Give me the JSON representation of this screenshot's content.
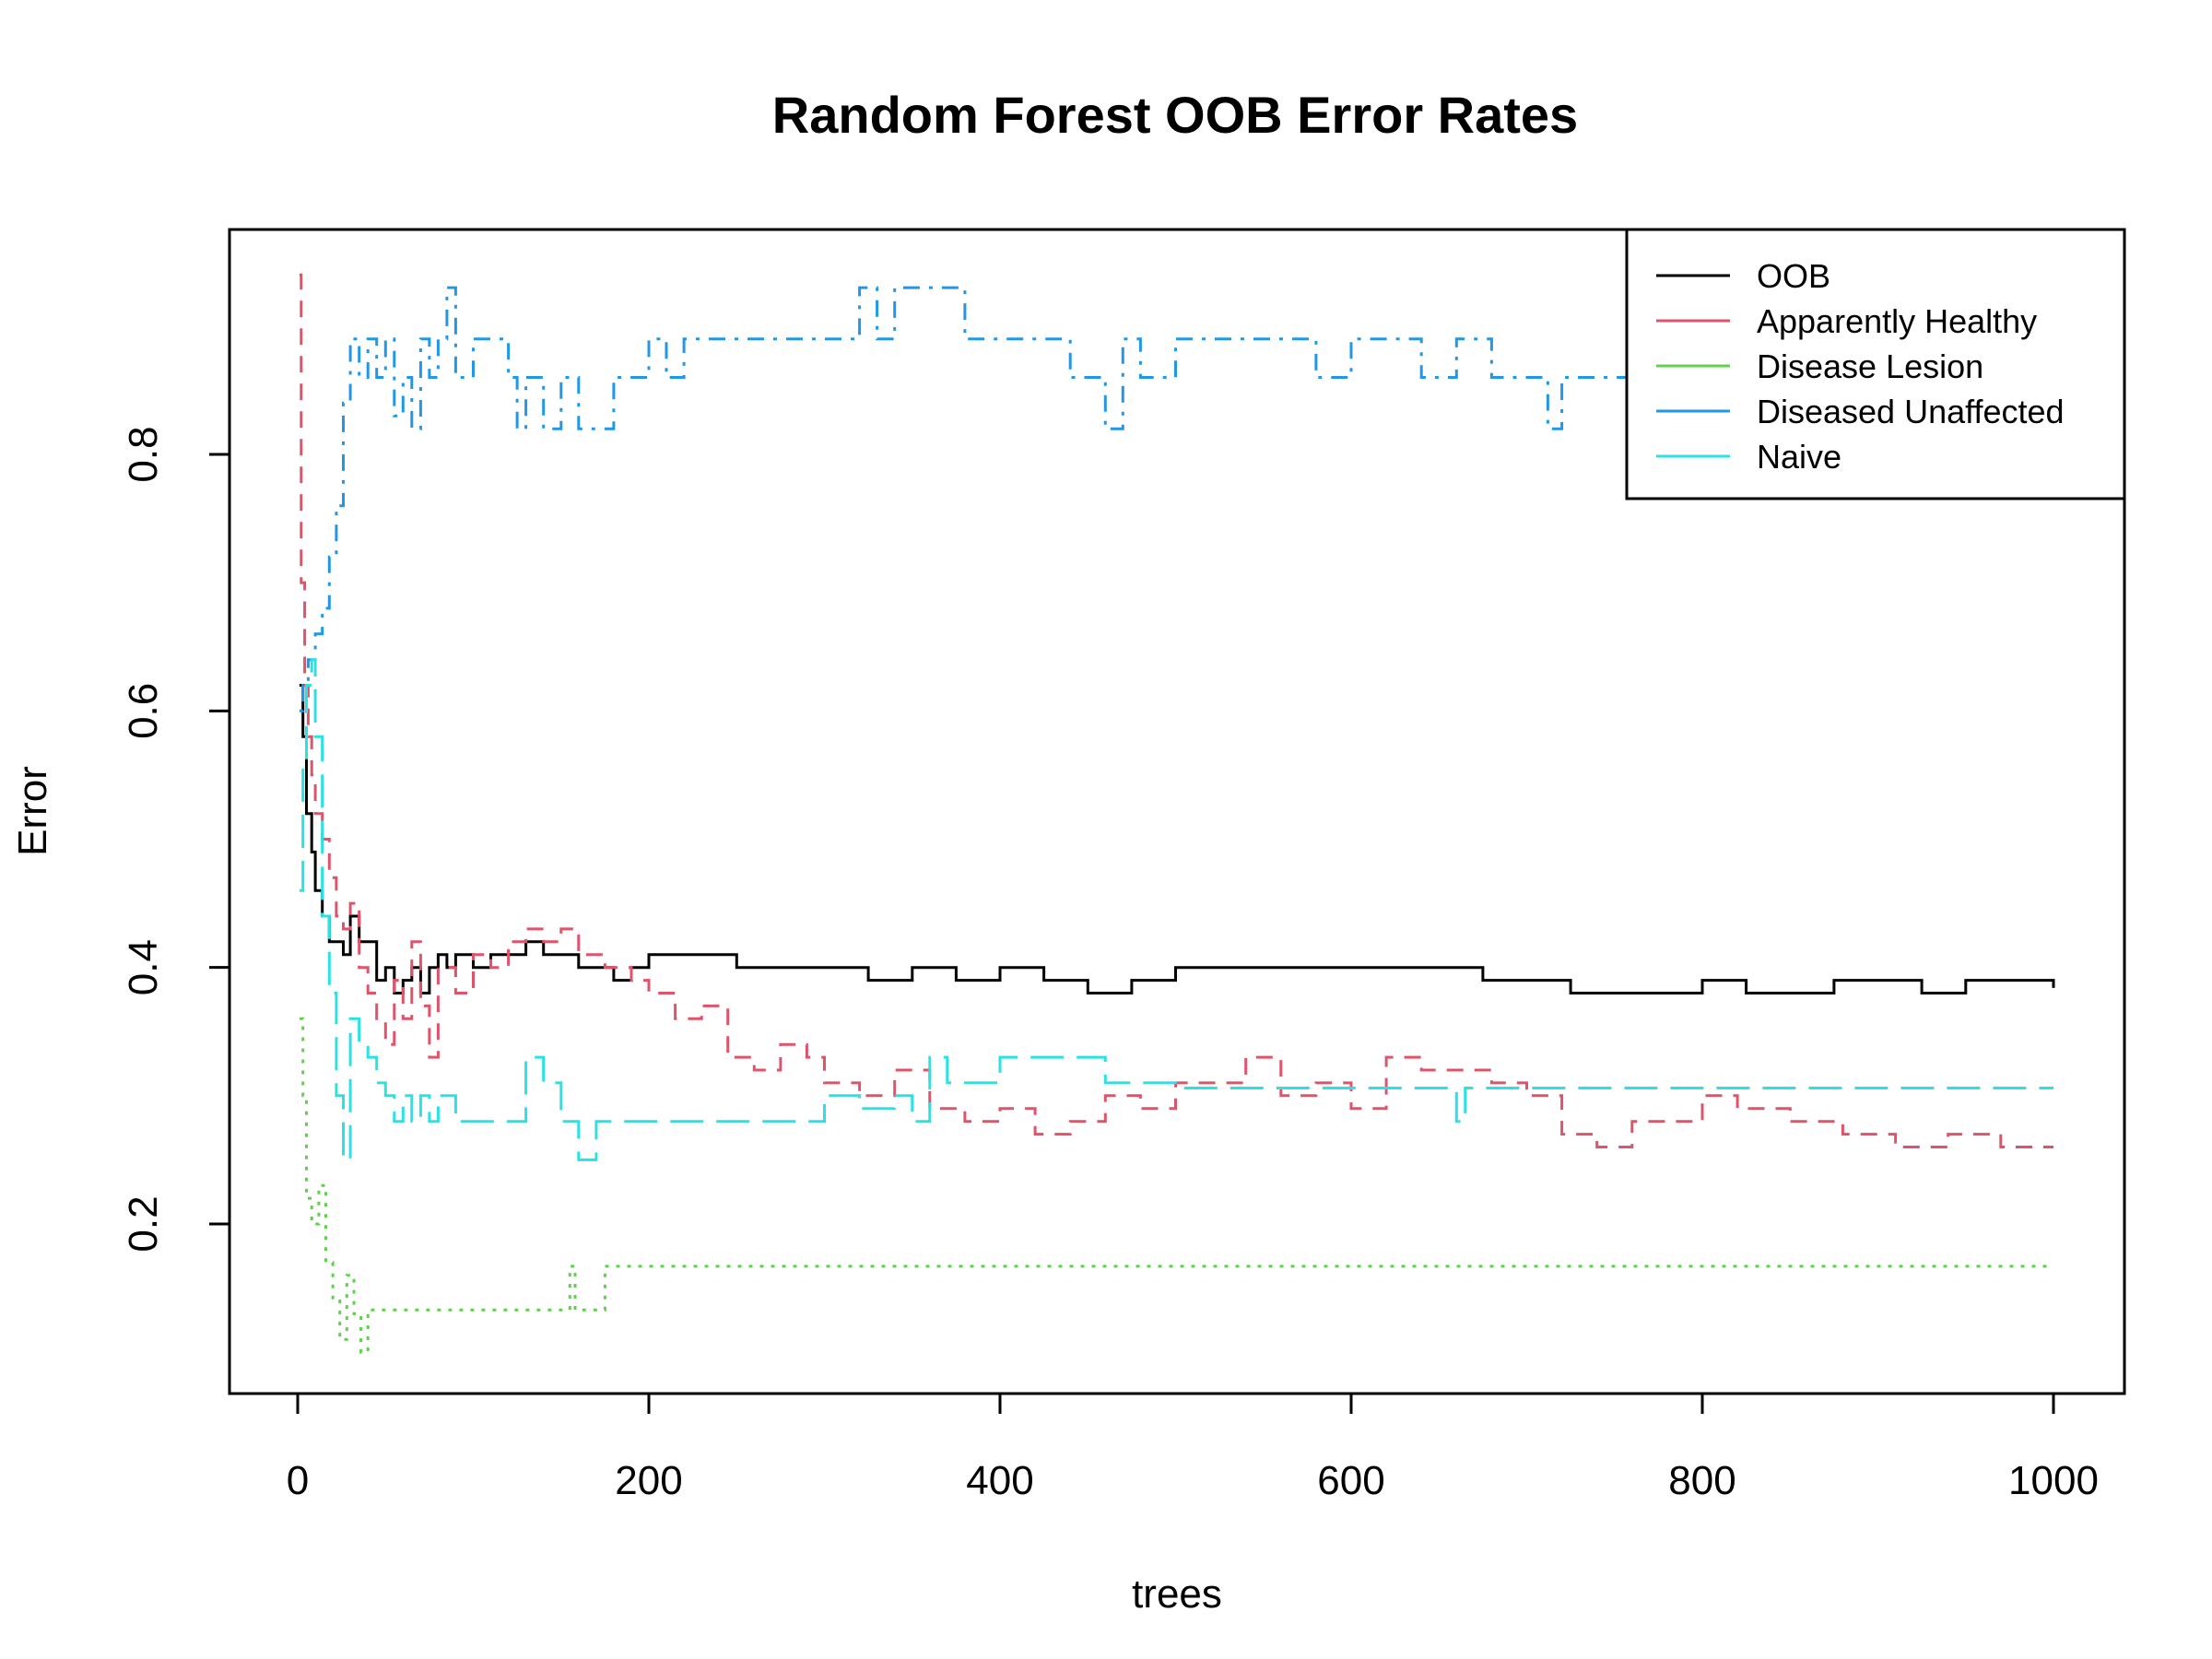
{
  "chart_data": {
    "type": "line",
    "title": "Random Forest OOB Error Rates",
    "xlabel": "trees",
    "ylabel": "Error",
    "xlim": [
      0,
      1000
    ],
    "ylim": [
      0.1,
      0.95
    ],
    "xticks": [
      0,
      200,
      400,
      600,
      800,
      1000
    ],
    "xtick_labels": [
      "0",
      "200",
      "400",
      "600",
      "800",
      "1000"
    ],
    "yticks": [
      0.2,
      0.4,
      0.6,
      0.8
    ],
    "ytick_labels": [
      "0.2",
      "0.4",
      "0.6",
      "0.8"
    ],
    "grid": false,
    "legend_position": "top-right",
    "series": [
      {
        "name": "OOB",
        "color": "#000000",
        "dash": "solid",
        "x": [
          1,
          3,
          5,
          8,
          10,
          14,
          18,
          22,
          26,
          30,
          35,
          40,
          45,
          50,
          55,
          60,
          65,
          70,
          75,
          80,
          85,
          90,
          100,
          110,
          120,
          130,
          140,
          150,
          160,
          170,
          180,
          190,
          200,
          225,
          250,
          275,
          300,
          325,
          350,
          375,
          400,
          425,
          450,
          475,
          500,
          525,
          550,
          575,
          600,
          625,
          650,
          675,
          700,
          725,
          750,
          775,
          800,
          825,
          850,
          875,
          900,
          925,
          950,
          975,
          1000
        ],
        "y": [
          0.62,
          0.58,
          0.52,
          0.49,
          0.46,
          0.44,
          0.42,
          0.42,
          0.41,
          0.44,
          0.42,
          0.42,
          0.39,
          0.4,
          0.38,
          0.39,
          0.4,
          0.38,
          0.4,
          0.41,
          0.4,
          0.41,
          0.4,
          0.41,
          0.41,
          0.42,
          0.41,
          0.41,
          0.4,
          0.4,
          0.39,
          0.4,
          0.41,
          0.41,
          0.4,
          0.4,
          0.4,
          0.39,
          0.4,
          0.39,
          0.4,
          0.39,
          0.38,
          0.39,
          0.4,
          0.4,
          0.4,
          0.4,
          0.4,
          0.4,
          0.4,
          0.39,
          0.39,
          0.38,
          0.38,
          0.38,
          0.39,
          0.38,
          0.38,
          0.39,
          0.39,
          0.38,
          0.39,
          0.39,
          0.384
        ]
      },
      {
        "name": "Apparently Healthy",
        "color": "#DF536B",
        "dash": "dashed",
        "x": [
          1,
          2,
          4,
          6,
          8,
          10,
          14,
          18,
          22,
          26,
          30,
          35,
          40,
          45,
          50,
          55,
          60,
          65,
          70,
          75,
          80,
          90,
          100,
          110,
          120,
          130,
          140,
          150,
          160,
          175,
          190,
          200,
          215,
          230,
          245,
          260,
          275,
          290,
          300,
          320,
          340,
          360,
          380,
          400,
          420,
          440,
          460,
          480,
          500,
          520,
          540,
          560,
          580,
          600,
          620,
          640,
          660,
          680,
          700,
          720,
          740,
          760,
          780,
          800,
          820,
          850,
          880,
          910,
          940,
          970,
          1000
        ],
        "y": [
          0.94,
          0.7,
          0.62,
          0.58,
          0.55,
          0.52,
          0.5,
          0.47,
          0.44,
          0.43,
          0.45,
          0.4,
          0.38,
          0.36,
          0.34,
          0.39,
          0.36,
          0.42,
          0.37,
          0.33,
          0.4,
          0.38,
          0.41,
          0.4,
          0.42,
          0.43,
          0.42,
          0.43,
          0.41,
          0.4,
          0.39,
          0.38,
          0.36,
          0.37,
          0.33,
          0.32,
          0.34,
          0.33,
          0.31,
          0.3,
          0.32,
          0.29,
          0.28,
          0.29,
          0.27,
          0.28,
          0.3,
          0.29,
          0.31,
          0.31,
          0.33,
          0.3,
          0.31,
          0.29,
          0.33,
          0.32,
          0.32,
          0.31,
          0.3,
          0.27,
          0.26,
          0.28,
          0.28,
          0.3,
          0.29,
          0.28,
          0.27,
          0.26,
          0.27,
          0.26,
          0.26
        ]
      },
      {
        "name": "Disease Lesion",
        "color": "#61D04F",
        "dash": "dotted",
        "x": [
          1,
          3,
          5,
          8,
          12,
          16,
          20,
          24,
          28,
          32,
          36,
          40,
          60,
          80,
          100,
          120,
          140,
          152,
          155,
          158,
          170,
          175,
          180,
          200,
          300,
          400,
          500,
          600,
          700,
          800,
          900,
          1000
        ],
        "y": [
          0.36,
          0.3,
          0.22,
          0.2,
          0.23,
          0.17,
          0.14,
          0.11,
          0.16,
          0.13,
          0.1,
          0.133,
          0.133,
          0.133,
          0.133,
          0.133,
          0.133,
          0.133,
          0.167,
          0.133,
          0.133,
          0.167,
          0.167,
          0.167,
          0.167,
          0.167,
          0.167,
          0.167,
          0.167,
          0.167,
          0.167,
          0.167
        ]
      },
      {
        "name": "Diseased Unaffected",
        "color": "#2297E6",
        "dash": "dotdash",
        "x": [
          1,
          3,
          6,
          10,
          14,
          18,
          22,
          26,
          30,
          35,
          40,
          45,
          50,
          55,
          60,
          65,
          70,
          75,
          80,
          85,
          90,
          100,
          110,
          120,
          125,
          130,
          140,
          150,
          160,
          170,
          180,
          190,
          200,
          210,
          220,
          230,
          250,
          270,
          290,
          310,
          320,
          330,
          340,
          350,
          360,
          370,
          380,
          400,
          420,
          440,
          460,
          470,
          480,
          500,
          520,
          540,
          560,
          580,
          600,
          620,
          640,
          660,
          680,
          700,
          712,
          720,
          740,
          760,
          780,
          800
        ],
        "y": [
          0.6,
          0.62,
          0.64,
          0.66,
          0.68,
          0.72,
          0.76,
          0.84,
          0.89,
          0.86,
          0.89,
          0.86,
          0.89,
          0.83,
          0.86,
          0.82,
          0.89,
          0.86,
          0.89,
          0.93,
          0.86,
          0.89,
          0.89,
          0.86,
          0.82,
          0.86,
          0.82,
          0.86,
          0.82,
          0.82,
          0.86,
          0.86,
          0.89,
          0.86,
          0.89,
          0.89,
          0.89,
          0.89,
          0.89,
          0.89,
          0.93,
          0.89,
          0.93,
          0.93,
          0.93,
          0.93,
          0.89,
          0.89,
          0.89,
          0.86,
          0.82,
          0.89,
          0.86,
          0.89,
          0.89,
          0.89,
          0.89,
          0.86,
          0.89,
          0.89,
          0.86,
          0.89,
          0.86,
          0.86,
          0.82,
          0.86,
          0.86,
          0.86,
          0.86,
          0.86
        ]
      },
      {
        "name": "Naive",
        "color": "#28E2E5",
        "dash": "longdash",
        "x": [
          1,
          3,
          5,
          8,
          10,
          14,
          18,
          22,
          26,
          30,
          35,
          40,
          45,
          50,
          55,
          60,
          65,
          70,
          75,
          80,
          90,
          100,
          110,
          120,
          130,
          140,
          150,
          160,
          170,
          180,
          200,
          220,
          240,
          260,
          280,
          300,
          320,
          340,
          350,
          360,
          370,
          380,
          400,
          420,
          440,
          460,
          500,
          550,
          600,
          650,
          660,
          665,
          700,
          800,
          900,
          1000
        ],
        "y": [
          0.46,
          0.56,
          0.62,
          0.64,
          0.58,
          0.44,
          0.38,
          0.3,
          0.25,
          0.36,
          0.34,
          0.33,
          0.31,
          0.3,
          0.28,
          0.3,
          0.28,
          0.3,
          0.28,
          0.3,
          0.28,
          0.28,
          0.28,
          0.28,
          0.33,
          0.31,
          0.28,
          0.25,
          0.28,
          0.28,
          0.28,
          0.28,
          0.28,
          0.28,
          0.28,
          0.3,
          0.29,
          0.3,
          0.28,
          0.33,
          0.31,
          0.31,
          0.33,
          0.33,
          0.33,
          0.31,
          0.306,
          0.306,
          0.306,
          0.306,
          0.28,
          0.306,
          0.306,
          0.306,
          0.306,
          0.306
        ]
      }
    ]
  }
}
